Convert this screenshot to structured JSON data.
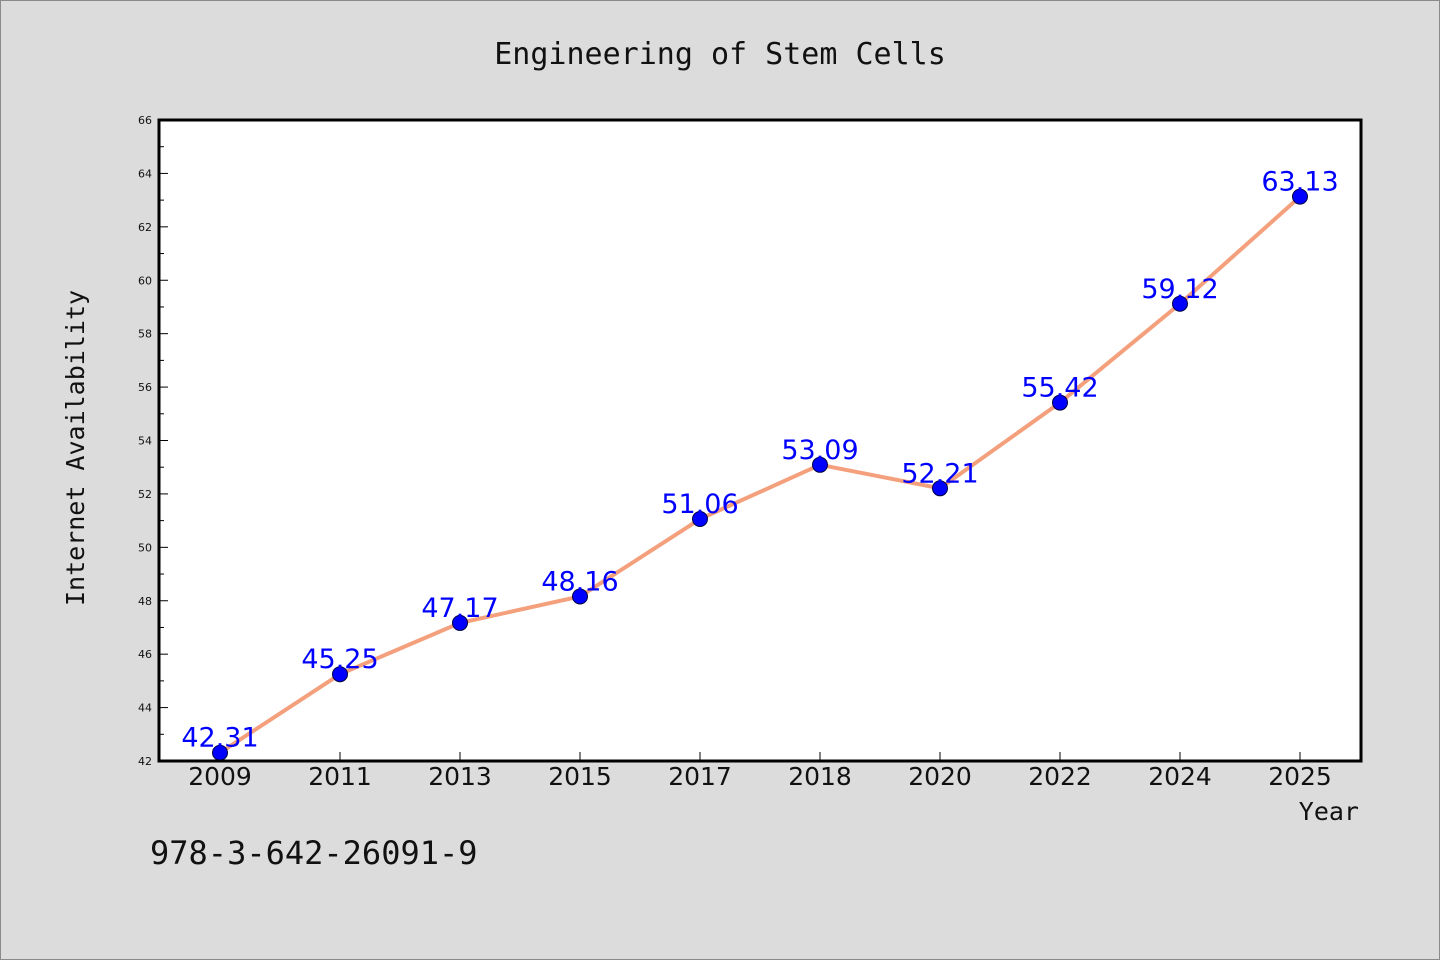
{
  "footer_text": "978-3-642-26091-9",
  "chart_data": {
    "type": "line",
    "title": "Engineering of Stem Cells",
    "xlabel": "Year",
    "ylabel": "Internet Availability",
    "categories": [
      "2009",
      "2011",
      "2013",
      "2015",
      "2017",
      "2018",
      "2020",
      "2022",
      "2024",
      "2025"
    ],
    "series": [
      {
        "values": [
          42.31,
          45.25,
          47.17,
          48.16,
          51.06,
          53.09,
          52.21,
          55.42,
          59.12,
          63.13
        ],
        "data_labels": [
          "42.31",
          "45.25",
          "47.17",
          "48.16",
          "51.06",
          "53.09",
          "52.21",
          "55.42",
          "59.12",
          "63.13"
        ],
        "line_color": "#f4a07c",
        "marker_color": "#0000ff"
      }
    ],
    "ylim": [
      42,
      66
    ],
    "yticks": [
      42,
      44,
      46,
      48,
      50,
      52,
      54,
      56,
      58,
      60,
      62,
      64,
      66
    ],
    "ytick_labels": [
      "42",
      "44",
      "46",
      "48",
      "50",
      "52",
      "54",
      "56",
      "58",
      "60",
      "62",
      "64",
      "66"
    ],
    "grid": false,
    "legend": "none",
    "colors": {
      "background": "#dcdcdc",
      "plot_background": "#ffffff",
      "axis": "#000000",
      "text": "#111111",
      "data_label": "#0000ff"
    }
  }
}
